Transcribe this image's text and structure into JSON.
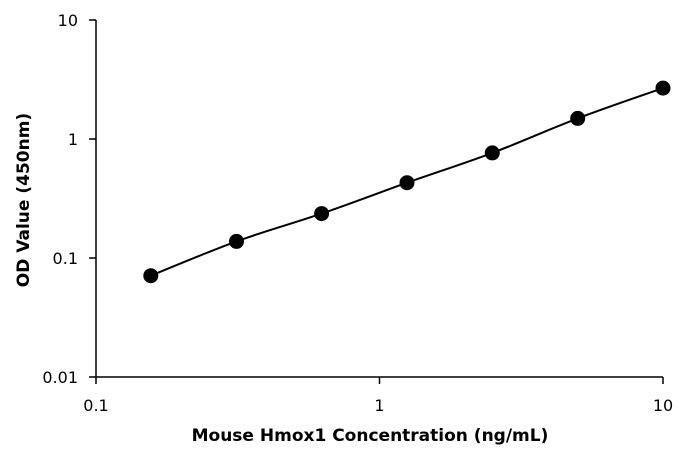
{
  "chart_data": {
    "type": "scatter",
    "title": "",
    "xlabel": "Mouse Hmox1 Concentration (ng/mL)",
    "ylabel": "OD Value (450nm)",
    "x_scale": "log",
    "y_scale": "log",
    "xlim": [
      0.1,
      10
    ],
    "ylim": [
      0.01,
      10
    ],
    "x_ticks": [
      "0.1",
      "1",
      "10"
    ],
    "y_ticks": [
      "0.01",
      "0.1",
      "1",
      "10"
    ],
    "grid": false,
    "legend": "none",
    "series": [
      {
        "x": [
          0.156,
          0.313,
          0.625,
          1.25,
          2.5,
          5,
          10
        ],
        "y": [
          0.071,
          0.138,
          0.236,
          0.429,
          0.764,
          1.49,
          2.68
        ],
        "color": "#000000",
        "fit_line": true
      }
    ]
  }
}
